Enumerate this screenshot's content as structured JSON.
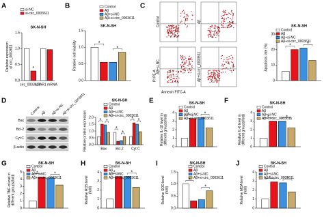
{
  "chart_data": [
    {
      "type": "bar",
      "panel": "A",
      "title": "SK-N-SH",
      "y_label": [
        "Relative expression",
        "of circ_0003611"
      ],
      "categories": [
        "circ_0003611",
        "LPAR1 mRNA"
      ],
      "series": [
        {
          "name": "si-NC",
          "color": "#ffffff",
          "values": [
            1.0,
            1.0
          ]
        },
        {
          "name": "si-circ_0003611",
          "color": "#e8141c",
          "values": [
            0.3,
            0.97
          ]
        }
      ],
      "ylim": [
        0,
        1.5
      ],
      "yticks": [
        {
          "value": 0,
          "label": "0.0"
        },
        0.5,
        {
          "value": 1,
          "label": "1.0"
        },
        1.5
      ],
      "sig": "*"
    },
    {
      "type": "bar",
      "panel": "B",
      "title": "SK-N-SH",
      "y_label": [
        "Relative cell viability"
      ],
      "categories": [
        null
      ],
      "series": [
        {
          "name": "Control",
          "color": "#ffffff",
          "values": [
            1.0
          ]
        },
        {
          "name": "Aβ",
          "color": "#e8141c",
          "values": [
            0.55
          ]
        },
        {
          "name": "Aβ+si-NC",
          "color": "#3d8fe0",
          "values": [
            0.55
          ]
        },
        {
          "name": "Aβ+si-circ_0003611",
          "color": "#c7a96b",
          "values": [
            0.85
          ]
        }
      ],
      "ylim": [
        0,
        1.5
      ],
      "yticks": [
        {
          "value": 0,
          "label": "0.0"
        },
        0.5,
        {
          "value": 1,
          "label": "1.0"
        },
        1.5
      ],
      "sig": "*"
    },
    {
      "type": "flow",
      "panel": "C",
      "labels": [
        "Control",
        "Aβ",
        "Aβ+si-NC",
        "Aβ+si-circ_0003611"
      ],
      "x_label": "Annexin FITC-A",
      "y_label": "PI PE-A"
    },
    {
      "type": "bar",
      "title": "SK-N-SH",
      "y_label": [
        "Apoptosis rate (%)"
      ],
      "categories": [
        null
      ],
      "series": [
        {
          "name": "Control",
          "color": "#ffffff",
          "values": [
            6
          ]
        },
        {
          "name": "Aβ",
          "color": "#e8141c",
          "values": [
            20
          ]
        },
        {
          "name": "Aβ+si-NC",
          "color": "#3d8fe0",
          "values": [
            21
          ]
        },
        {
          "name": "Aβ+si-circ_0003611",
          "color": "#c7a96b",
          "values": [
            13
          ]
        }
      ],
      "ylim": [
        0,
        30
      ],
      "yticks": [
        0,
        10,
        20,
        30
      ],
      "sig": "*"
    },
    {
      "type": "blot",
      "panel": "D",
      "columns": [
        "Control",
        "Aβ",
        "Aβ+si-NC",
        "Aβ+si-circ_0003611"
      ],
      "rows": [
        "Bax",
        "Bcl-2",
        "Cyt C",
        "β-actin"
      ]
    },
    {
      "type": "bar",
      "title": "SK-N-SH",
      "y_label": [
        "Relative protein expression"
      ],
      "categories": [
        "Bax",
        "Bcl-2",
        "Cyt C"
      ],
      "series": [
        {
          "name": "Control",
          "color": "#ffffff",
          "values": [
            0.6,
            0.9,
            0.6
          ]
        },
        {
          "name": "Aβ",
          "color": "#e8141c",
          "values": [
            1.5,
            0.25,
            1.6
          ]
        },
        {
          "name": "Aβ+si-NC",
          "color": "#3d8fe0",
          "values": [
            1.45,
            0.3,
            1.5
          ]
        },
        {
          "name": "Aβ+si-circ_0003611",
          "color": "#c7a96b",
          "values": [
            0.9,
            0.6,
            0.95
          ]
        }
      ],
      "ylim": [
        0,
        2
      ],
      "yticks": [
        {
          "value": 0,
          "label": "0.0"
        },
        0.5,
        {
          "value": 1,
          "label": "1.0"
        },
        1.5,
        {
          "value": 2,
          "label": "2.0"
        }
      ],
      "sig": "*"
    },
    {
      "type": "bar",
      "panel": "E",
      "title": "SK-N-SH",
      "y_label": [
        "Relative IL-1β level in",
        "different groups(fold)"
      ],
      "categories": [
        null
      ],
      "series": [
        {
          "name": "Control",
          "color": "#ffffff",
          "values": [
            1
          ]
        },
        {
          "name": "Aβ",
          "color": "#e8141c",
          "values": [
            3.3
          ]
        },
        {
          "name": "Aβ+si-NC",
          "color": "#3d8fe0",
          "values": [
            3.4
          ]
        },
        {
          "name": "Aβ+si-circ_0003611",
          "color": "#c7a96b",
          "values": [
            2.2
          ]
        }
      ],
      "ylim": [
        0,
        4
      ],
      "yticks": [
        0,
        1,
        2,
        3,
        4
      ],
      "sig": "*"
    },
    {
      "type": "bar",
      "panel": "F",
      "title": "SK-N-SH",
      "y_label": [
        "Relative IL-6 level in",
        "different groups(fold)"
      ],
      "categories": [
        null
      ],
      "series": [
        {
          "name": "Control",
          "color": "#ffffff",
          "values": [
            1
          ]
        },
        {
          "name": "Aβ",
          "color": "#e8141c",
          "values": [
            3.0
          ]
        },
        {
          "name": "Aβ+si-NC",
          "color": "#3d8fe0",
          "values": [
            3.0
          ]
        },
        {
          "name": "Aβ+si-circ_0003611",
          "color": "#c7a96b",
          "values": [
            2.2
          ]
        }
      ],
      "ylim": [
        0,
        4
      ],
      "yticks": [
        0,
        1,
        2,
        3,
        4
      ],
      "sig": "*"
    },
    {
      "type": "bar",
      "panel": "G",
      "title": "SK-N-SH",
      "y_label": [
        "Relative TNF-α level in",
        "different groups(fold)"
      ],
      "categories": [
        null
      ],
      "series": [
        {
          "name": "Control",
          "color": "#ffffff",
          "values": [
            1
          ]
        },
        {
          "name": "Aβ",
          "color": "#e8141c",
          "values": [
            4.3
          ]
        },
        {
          "name": "Aβ+si-NC",
          "color": "#3d8fe0",
          "values": [
            4.2
          ]
        },
        {
          "name": "Aβ+si-circ_0003611",
          "color": "#c7a96b",
          "values": [
            3.2
          ]
        }
      ],
      "ylim": [
        0,
        5
      ],
      "yticks": [
        0,
        1,
        2,
        3,
        4,
        5
      ],
      "sig": "*"
    },
    {
      "type": "bar",
      "panel": "H",
      "title": "SK-N-SH",
      "y_label": [
        "Relative ROS level",
        "(fold)"
      ],
      "categories": [
        null
      ],
      "series": [
        {
          "name": "Control",
          "color": "#ffffff",
          "values": [
            1
          ]
        },
        {
          "name": "Aβ",
          "color": "#e8141c",
          "values": [
            3.5
          ]
        },
        {
          "name": "Aβ+si-NC",
          "color": "#3d8fe0",
          "values": [
            3.5
          ]
        },
        {
          "name": "Aβ+si-circ_0003611",
          "color": "#c7a96b",
          "values": [
            2.3
          ]
        }
      ],
      "ylim": [
        0,
        4
      ],
      "yticks": [
        0,
        1,
        2,
        3,
        4
      ],
      "sig": "*"
    },
    {
      "type": "bar",
      "panel": "I",
      "title": "SK-N-SH",
      "y_label": [
        "Relative SOD level",
        "(fold)"
      ],
      "categories": [
        null
      ],
      "series": [
        {
          "name": "Control",
          "color": "#ffffff",
          "values": [
            1.0
          ]
        },
        {
          "name": "Aβ",
          "color": "#e8141c",
          "values": [
            0.3
          ]
        },
        {
          "name": "Aβ+si-NC",
          "color": "#3d8fe0",
          "values": [
            0.35
          ]
        },
        {
          "name": "Aβ+si-circ_0003611",
          "color": "#c7a96b",
          "values": [
            0.72
          ]
        }
      ],
      "ylim": [
        0,
        1.5
      ],
      "yticks": [
        {
          "value": 0,
          "label": "0.0"
        },
        0.5,
        {
          "value": 1,
          "label": "1.0"
        },
        1.5
      ],
      "sig": "*"
    },
    {
      "type": "bar",
      "panel": "J",
      "title": "SK-N-SH",
      "y_label": [
        "Relative MDA level",
        "(fold)"
      ],
      "categories": [
        null
      ],
      "series": [
        {
          "name": "Control",
          "color": "#ffffff",
          "values": [
            1
          ]
        },
        {
          "name": "Aβ",
          "color": "#e8141c",
          "values": [
            2.9
          ]
        },
        {
          "name": "Aβ+si-NC",
          "color": "#3d8fe0",
          "values": [
            2.8
          ]
        },
        {
          "name": "Aβ+si-circ_0003611",
          "color": "#c7a96b",
          "values": [
            1.8
          ]
        }
      ],
      "ylim": [
        0,
        4
      ],
      "yticks": [
        0,
        1,
        2,
        3,
        4
      ],
      "sig": "*"
    }
  ]
}
